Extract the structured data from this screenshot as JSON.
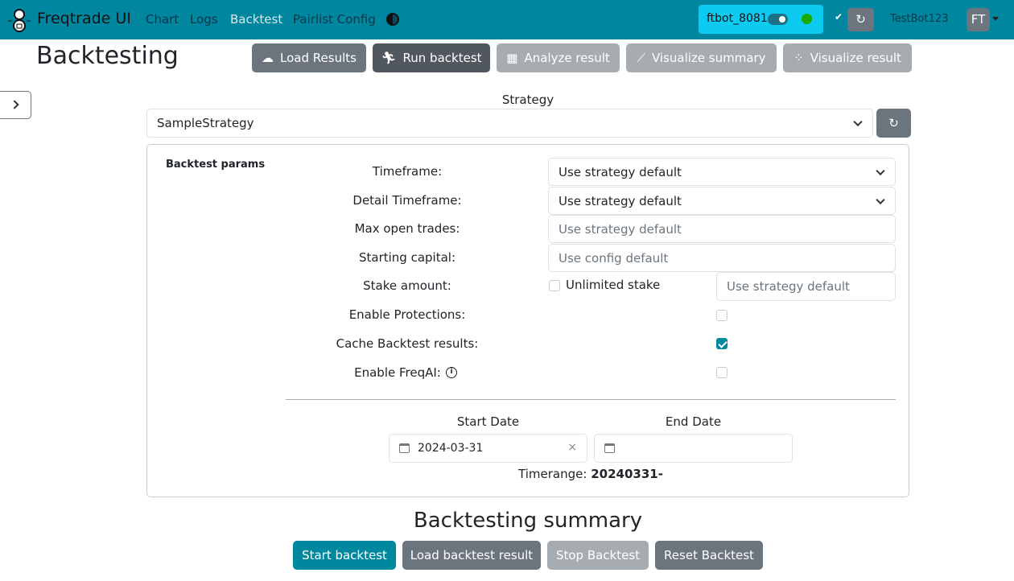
{
  "nav": {
    "brand": "Freqtrade UI",
    "links": [
      "Chart",
      "Logs",
      "Backtest",
      "Pairlist Config"
    ],
    "active": "Backtest",
    "bot_name": "ftbot_8081",
    "bot_status_color": "#1aaa00",
    "user": "TestBot123",
    "avatar": "FT"
  },
  "page": {
    "title": "Backtesting"
  },
  "toolbar": {
    "load_results": "Load Results",
    "run_backtest": "Run backtest",
    "analyze_result": "Analyze result",
    "visualize_summary": "Visualize summary",
    "visualize_result": "Visualize result"
  },
  "strategy": {
    "label": "Strategy",
    "value": "SampleStrategy"
  },
  "params": {
    "title": "Backtest params",
    "timeframe_label": "Timeframe:",
    "timeframe_value": "Use strategy default",
    "detail_timeframe_label": "Detail Timeframe:",
    "detail_timeframe_value": "Use strategy default",
    "max_open_trades_label": "Max open trades:",
    "max_open_trades_placeholder": "Use strategy default",
    "starting_capital_label": "Starting capital:",
    "starting_capital_placeholder": "Use config default",
    "stake_amount_label": "Stake amount:",
    "unlimited_stake_label": "Unlimited stake",
    "unlimited_stake_checked": false,
    "stake_amount_placeholder": "Use strategy default",
    "enable_protections_label": "Enable Protections:",
    "enable_protections_checked": false,
    "cache_label": "Cache Backtest results:",
    "cache_checked": true,
    "freqai_label": "Enable FreqAI:",
    "freqai_checked": false
  },
  "dates": {
    "start_label": "Start Date",
    "start_value": "2024-03-31",
    "end_label": "End Date",
    "end_value": "",
    "timerange_label": "Timerange:",
    "timerange_value": "20240331-"
  },
  "summary": {
    "title": "Backtesting summary",
    "start": "Start backtest",
    "load": "Load backtest result",
    "stop": "Stop Backtest",
    "reset": "Reset Backtest"
  },
  "colors": {
    "navbar": "#00869f",
    "accent": "#00889e",
    "bot_box": "#0dcaf0"
  }
}
